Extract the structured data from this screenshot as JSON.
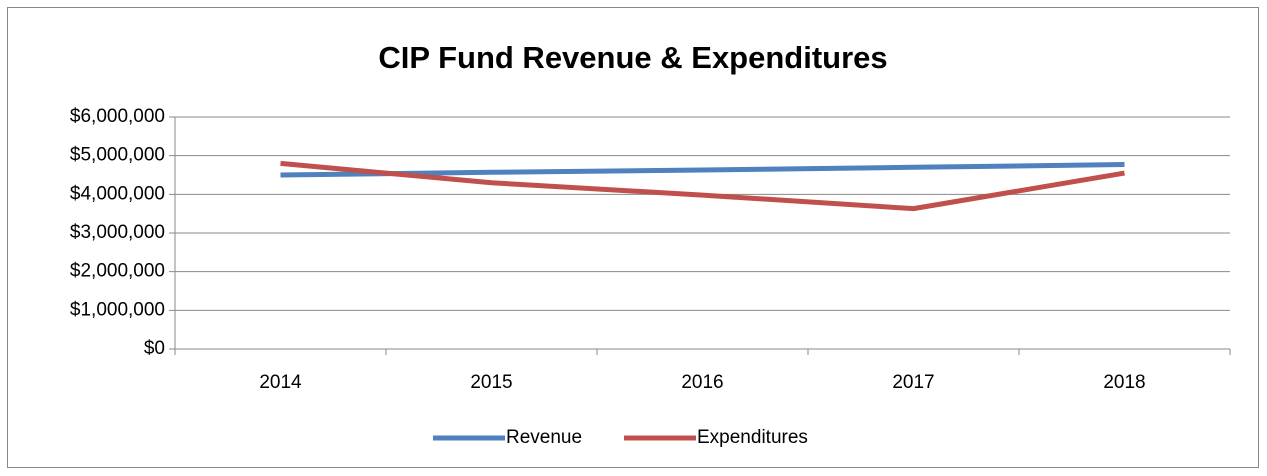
{
  "chart_data": {
    "type": "line",
    "title": "CIP Fund Revenue & Expenditures",
    "categories": [
      "2014",
      "2015",
      "2016",
      "2017",
      "2018"
    ],
    "series": [
      {
        "name": "Revenue",
        "color": "#4f81bd",
        "values": [
          4500000,
          4570000,
          4630000,
          4700000,
          4770000
        ]
      },
      {
        "name": "Expenditures",
        "color": "#c0504d",
        "values": [
          4800000,
          4300000,
          3980000,
          3630000,
          4550000
        ]
      }
    ],
    "ylim": [
      0,
      6000000
    ],
    "yticks": [
      {
        "value": 0,
        "label": "$0"
      },
      {
        "value": 1000000,
        "label": "$1,000,000"
      },
      {
        "value": 2000000,
        "label": "$2,000,000"
      },
      {
        "value": 3000000,
        "label": "$3,000,000"
      },
      {
        "value": 4000000,
        "label": "$4,000,000"
      },
      {
        "value": 5000000,
        "label": "$5,000,000"
      },
      {
        "value": 6000000,
        "label": "$6,000,000"
      }
    ],
    "grid": true,
    "legend": "bottom"
  }
}
